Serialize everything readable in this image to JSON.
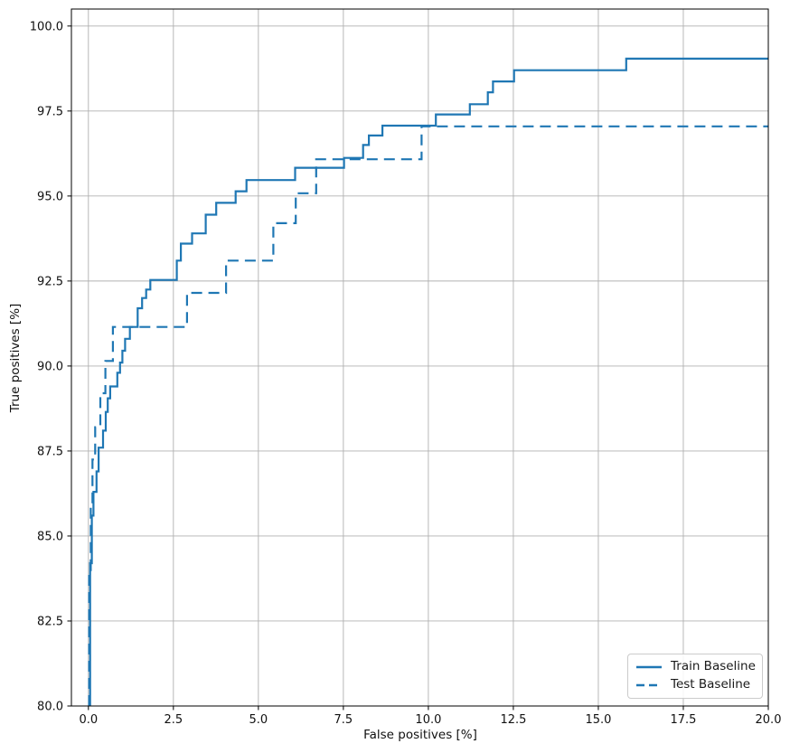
{
  "chart_data": {
    "type": "line",
    "subtype": "roc-step-curves",
    "title": "",
    "xlabel": "False positives [%]",
    "ylabel": "True positives [%]",
    "xlim": [
      -0.5,
      20
    ],
    "ylim": [
      80,
      100.5
    ],
    "xticks": [
      0.0,
      2.5,
      5.0,
      7.5,
      10.0,
      12.5,
      15.0,
      17.5,
      20.0
    ],
    "yticks": [
      80.0,
      82.5,
      85.0,
      87.5,
      90.0,
      92.5,
      95.0,
      97.5,
      100.0
    ],
    "xtick_labels": [
      "0.0",
      "2.5",
      "5.0",
      "7.5",
      "10.0",
      "12.5",
      "15.0",
      "17.5",
      "20.0"
    ],
    "ytick_labels": [
      "80.0",
      "82.5",
      "85.0",
      "87.5",
      "90.0",
      "92.5",
      "95.0",
      "97.5",
      "100.0"
    ],
    "grid": true,
    "legend_position": "lower right",
    "colors": {
      "line": "#1f77b4",
      "grid": "#b0b0b0",
      "spine": "#000000",
      "legend_border": "#cbcbcb",
      "background": "#ffffff"
    },
    "series": [
      {
        "name": "Train Baseline",
        "style": "solid",
        "color": "#1f77b4",
        "linewidth": 2.2,
        "dash": [],
        "points": [
          [
            0.05,
            80.0
          ],
          [
            0.05,
            84.2
          ],
          [
            0.1,
            84.2
          ],
          [
            0.1,
            85.6
          ],
          [
            0.15,
            85.6
          ],
          [
            0.15,
            86.3
          ],
          [
            0.24,
            86.3
          ],
          [
            0.24,
            86.9
          ],
          [
            0.3,
            86.9
          ],
          [
            0.3,
            87.6
          ],
          [
            0.43,
            87.6
          ],
          [
            0.43,
            88.1
          ],
          [
            0.51,
            88.1
          ],
          [
            0.51,
            88.65
          ],
          [
            0.57,
            88.65
          ],
          [
            0.57,
            89.05
          ],
          [
            0.64,
            89.05
          ],
          [
            0.64,
            89.4
          ],
          [
            0.85,
            89.4
          ],
          [
            0.85,
            89.8
          ],
          [
            0.93,
            89.8
          ],
          [
            0.93,
            90.1
          ],
          [
            1.0,
            90.1
          ],
          [
            1.0,
            90.45
          ],
          [
            1.08,
            90.45
          ],
          [
            1.08,
            90.8
          ],
          [
            1.22,
            90.8
          ],
          [
            1.22,
            91.15
          ],
          [
            1.45,
            91.15
          ],
          [
            1.45,
            91.7
          ],
          [
            1.58,
            91.7
          ],
          [
            1.58,
            92.0
          ],
          [
            1.7,
            92.0
          ],
          [
            1.7,
            92.25
          ],
          [
            1.82,
            92.25
          ],
          [
            1.82,
            92.53
          ],
          [
            2.6,
            92.53
          ],
          [
            2.6,
            93.1
          ],
          [
            2.72,
            93.1
          ],
          [
            2.72,
            93.6
          ],
          [
            3.05,
            93.6
          ],
          [
            3.05,
            93.9
          ],
          [
            3.45,
            93.9
          ],
          [
            3.45,
            94.45
          ],
          [
            3.76,
            94.45
          ],
          [
            3.76,
            94.8
          ],
          [
            4.33,
            94.8
          ],
          [
            4.33,
            95.14
          ],
          [
            4.65,
            95.14
          ],
          [
            4.65,
            95.47
          ],
          [
            6.08,
            95.47
          ],
          [
            6.08,
            95.83
          ],
          [
            7.52,
            95.83
          ],
          [
            7.52,
            96.12
          ],
          [
            8.08,
            96.12
          ],
          [
            8.08,
            96.5
          ],
          [
            8.25,
            96.5
          ],
          [
            8.25,
            96.78
          ],
          [
            8.65,
            96.78
          ],
          [
            8.65,
            97.07
          ],
          [
            10.22,
            97.07
          ],
          [
            10.22,
            97.4
          ],
          [
            11.22,
            97.4
          ],
          [
            11.22,
            97.7
          ],
          [
            11.75,
            97.7
          ],
          [
            11.75,
            98.05
          ],
          [
            11.9,
            98.05
          ],
          [
            11.9,
            98.37
          ],
          [
            12.52,
            98.37
          ],
          [
            12.52,
            98.7
          ],
          [
            15.82,
            98.7
          ],
          [
            15.82,
            99.04
          ],
          [
            20,
            99.04
          ]
        ]
      },
      {
        "name": "Test Baseline",
        "style": "dashed",
        "color": "#1f77b4",
        "linewidth": 2.2,
        "dash": [
          12,
          7
        ],
        "points": [
          [
            0.02,
            80.0
          ],
          [
            0.02,
            84.0
          ],
          [
            0.07,
            84.0
          ],
          [
            0.07,
            85.8
          ],
          [
            0.12,
            85.8
          ],
          [
            0.12,
            87.25
          ],
          [
            0.2,
            87.25
          ],
          [
            0.2,
            88.2
          ],
          [
            0.35,
            88.2
          ],
          [
            0.35,
            89.2
          ],
          [
            0.5,
            89.2
          ],
          [
            0.5,
            90.15
          ],
          [
            0.72,
            90.15
          ],
          [
            0.72,
            91.15
          ],
          [
            2.9,
            91.15
          ],
          [
            2.9,
            92.15
          ],
          [
            4.05,
            92.15
          ],
          [
            4.05,
            93.1
          ],
          [
            5.44,
            93.1
          ],
          [
            5.44,
            94.2
          ],
          [
            6.1,
            94.2
          ],
          [
            6.1,
            95.08
          ],
          [
            6.7,
            95.08
          ],
          [
            6.7,
            96.08
          ],
          [
            9.8,
            96.08
          ],
          [
            9.8,
            97.05
          ],
          [
            20,
            97.05
          ]
        ]
      }
    ]
  }
}
